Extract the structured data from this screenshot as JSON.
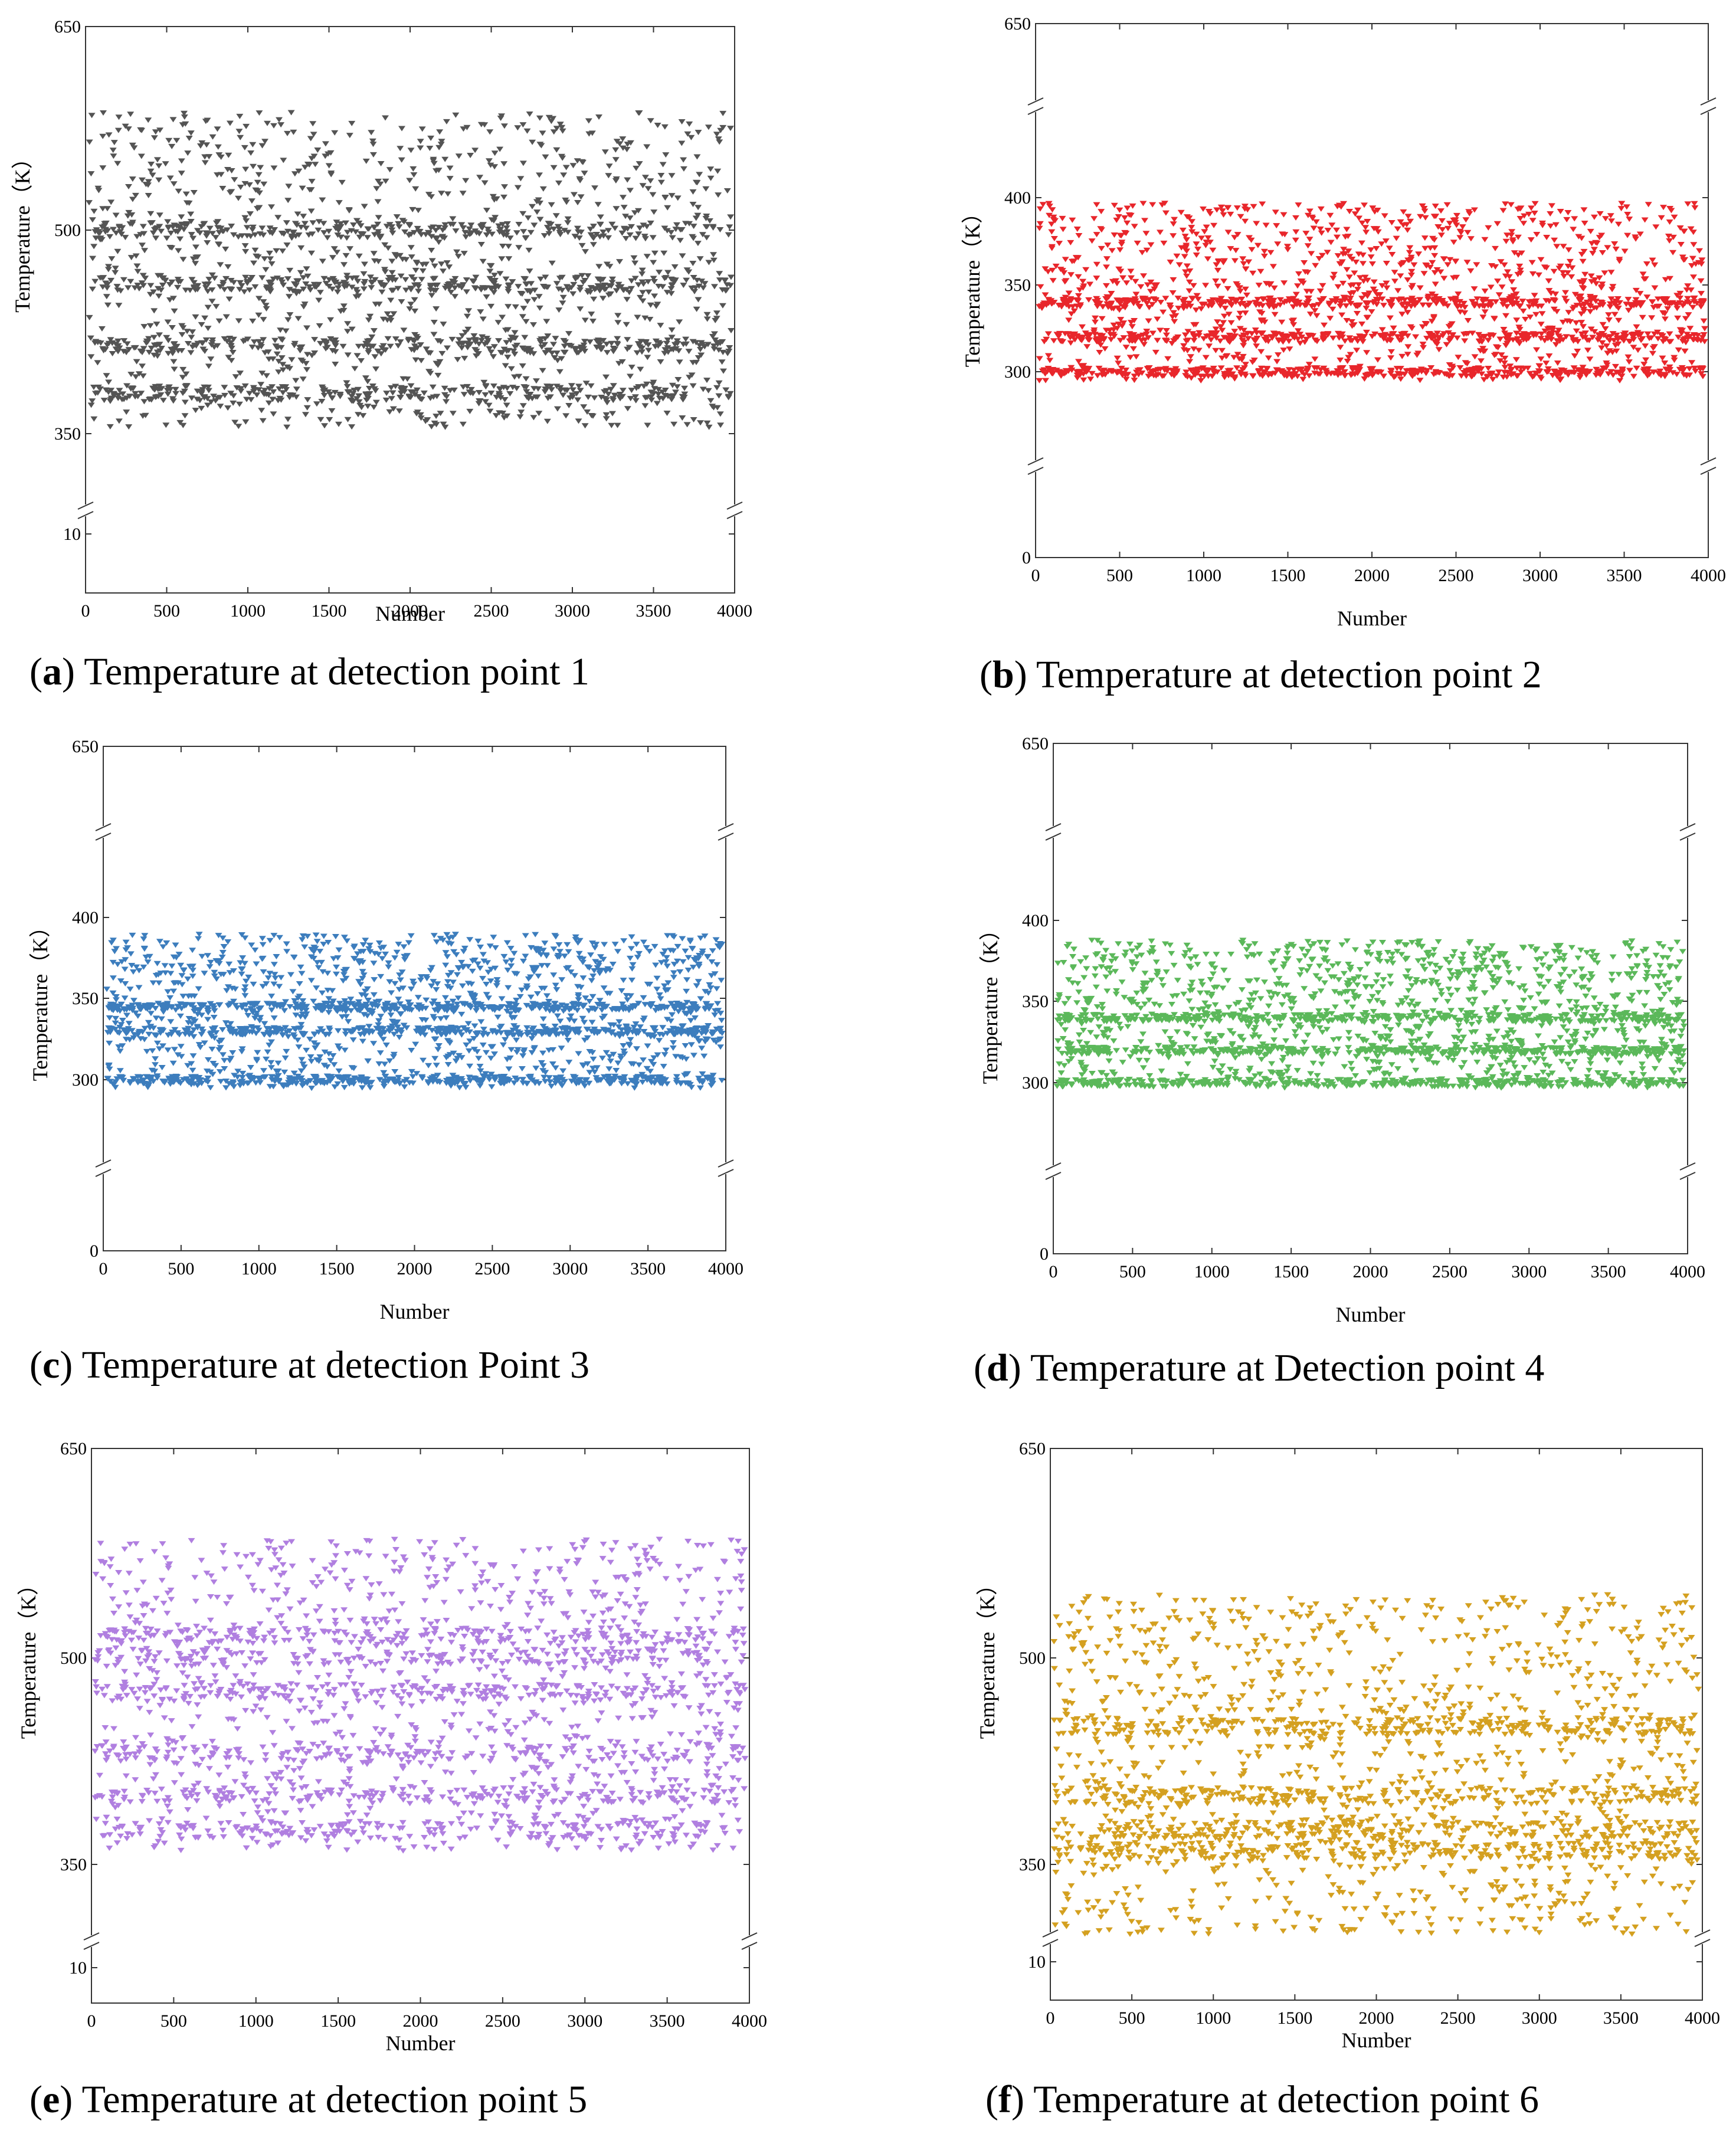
{
  "chart_data": [
    {
      "type": "scatter",
      "panel_letter": "a",
      "caption": "Temperature at detection point 1",
      "xlabel": "Number",
      "ylabel": "Temperature（K）",
      "xlim": [
        0,
        4000
      ],
      "xticks": [
        "0",
        "500",
        "1000",
        "1500",
        "2000",
        "2500",
        "3000",
        "3500",
        "4000"
      ],
      "y_axis_break": true,
      "y_segments": [
        [
          10,
          10
        ],
        [
          350,
          650
        ]
      ],
      "yticks": [
        "10",
        "350",
        "500",
        "650"
      ],
      "color": "#545454",
      "marker": "triangle-down",
      "series": {
        "n_points": 4000,
        "y_min": 355,
        "y_max": 587,
        "dense_bands": [
          380,
          415,
          460,
          500
        ]
      },
      "grid": false,
      "legend": "none"
    },
    {
      "type": "scatter",
      "panel_letter": "b",
      "caption": "Temperature at detection point 2",
      "xlabel": "Number",
      "ylabel": "Temperature（K）",
      "xlim": [
        0,
        4000
      ],
      "xticks": [
        "0",
        "500",
        "1000",
        "1500",
        "2000",
        "2500",
        "3000",
        "3500",
        "4000"
      ],
      "y_axis_break": true,
      "y_segments": [
        [
          0,
          0
        ],
        [
          300,
          400
        ],
        [
          650,
          650
        ]
      ],
      "yticks": [
        "0",
        "300",
        "350",
        "400",
        "650"
      ],
      "color": "#e8262b",
      "marker": "triangle-down",
      "series": {
        "n_points": 4000,
        "y_min": 295,
        "y_max": 397,
        "dense_bands": [
          300,
          320,
          340
        ]
      },
      "grid": false,
      "legend": "none"
    },
    {
      "type": "scatter",
      "panel_letter": "c",
      "caption": "Temperature at detection Point 3",
      "xlabel": "Number",
      "ylabel": "Temperature（K）",
      "xlim": [
        0,
        4000
      ],
      "xticks": [
        "0",
        "500",
        "1000",
        "1500",
        "2000",
        "2500",
        "3000",
        "3500",
        "4000"
      ],
      "y_axis_break": true,
      "y_segments": [
        [
          0,
          0
        ],
        [
          300,
          400
        ],
        [
          650,
          650
        ]
      ],
      "yticks": [
        "0",
        "300",
        "350",
        "400",
        "650"
      ],
      "color": "#3c7dbd",
      "marker": "triangle-down",
      "series": {
        "n_points": 4000,
        "y_min": 295,
        "y_max": 390,
        "dense_bands": [
          300,
          330,
          345
        ]
      },
      "grid": false,
      "legend": "none"
    },
    {
      "type": "scatter",
      "panel_letter": "d",
      "caption": "Temperature at Detection point 4",
      "xlabel": "Number",
      "ylabel": "Temperature（K）",
      "xlim": [
        0,
        4000
      ],
      "xticks": [
        "0",
        "500",
        "1000",
        "1500",
        "2000",
        "2500",
        "3000",
        "3500",
        "4000"
      ],
      "y_axis_break": true,
      "y_segments": [
        [
          0,
          0
        ],
        [
          300,
          400
        ],
        [
          650,
          650
        ]
      ],
      "yticks": [
        "0",
        "300",
        "350",
        "400",
        "650"
      ],
      "color": "#5bb85a",
      "marker": "triangle-down",
      "series": {
        "n_points": 4000,
        "y_min": 297,
        "y_max": 388,
        "dense_bands": [
          300,
          320,
          340
        ]
      },
      "grid": false,
      "legend": "none"
    },
    {
      "type": "scatter",
      "panel_letter": "e",
      "caption": "Temperature at detection point 5",
      "xlabel": "Number",
      "ylabel": "Temperature（K）",
      "xlim": [
        0,
        4000
      ],
      "xticks": [
        "0",
        "500",
        "1000",
        "1500",
        "2000",
        "2500",
        "3000",
        "3500",
        "4000"
      ],
      "y_axis_break": true,
      "y_segments": [
        [
          10,
          10
        ],
        [
          350,
          650
        ]
      ],
      "yticks": [
        "10",
        "350",
        "500",
        "650"
      ],
      "color": "#b07fe0",
      "marker": "triangle-down",
      "series": {
        "n_points": 4000,
        "y_min": 360,
        "y_max": 585,
        "dense_bands": [
          375,
          400,
          430,
          475,
          500,
          515
        ]
      },
      "grid": false,
      "legend": "none"
    },
    {
      "type": "scatter",
      "panel_letter": "f",
      "caption": "Temperature at detection point 6",
      "xlabel": "Number",
      "ylabel": "Temperature（K）",
      "xlim": [
        0,
        4000
      ],
      "xticks": [
        "0",
        "500",
        "1000",
        "1500",
        "2000",
        "2500",
        "3000",
        "3500",
        "4000"
      ],
      "y_axis_break": true,
      "y_segments": [
        [
          10,
          10
        ],
        [
          350,
          650
        ]
      ],
      "yticks": [
        "10",
        "350",
        "500",
        "650"
      ],
      "color": "#d4a020",
      "marker": "triangle-down",
      "series": {
        "n_points": 4000,
        "y_min": 300,
        "y_max": 545,
        "dense_bands": [
          360,
          375,
          400,
          450
        ]
      },
      "grid": false,
      "legend": "none"
    }
  ]
}
